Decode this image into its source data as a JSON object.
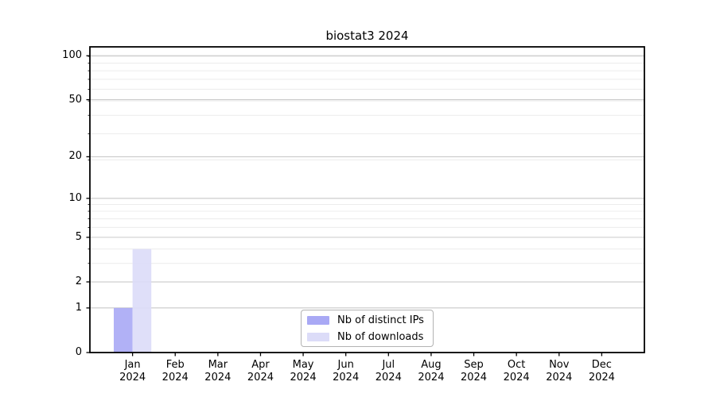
{
  "figure": {
    "background": "#ffffff"
  },
  "chart_data": {
    "type": "bar",
    "title": "biostat3 2024",
    "categories": [
      "Jan",
      "Feb",
      "Mar",
      "Apr",
      "May",
      "Jun",
      "Jul",
      "Aug",
      "Sep",
      "Oct",
      "Nov",
      "Dec"
    ],
    "x_year_line": "2024",
    "series": [
      {
        "name": "Nb of distinct IPs",
        "color": "#a9a9f5",
        "values": [
          1,
          0,
          0,
          0,
          0,
          0,
          0,
          0,
          0,
          0,
          0,
          0
        ]
      },
      {
        "name": "Nb of downloads",
        "color": "#dcdcf8",
        "values": [
          4,
          0,
          0,
          0,
          0,
          0,
          0,
          0,
          0,
          0,
          0,
          0
        ]
      }
    ],
    "y_axis": {
      "scale": "log1p",
      "ticks": [
        0,
        1,
        2,
        5,
        10,
        20,
        50,
        100
      ],
      "minor_ticks": [
        3,
        4,
        6,
        7,
        8,
        9,
        19,
        29,
        39,
        49,
        59,
        69,
        79,
        89,
        99
      ],
      "ylim": [
        0,
        115
      ]
    },
    "grid": {
      "orientation": "horizontal",
      "major_color": "#c9c9c9",
      "minor_color": "#ececec"
    },
    "legend_position": "bottom-center-inside"
  }
}
